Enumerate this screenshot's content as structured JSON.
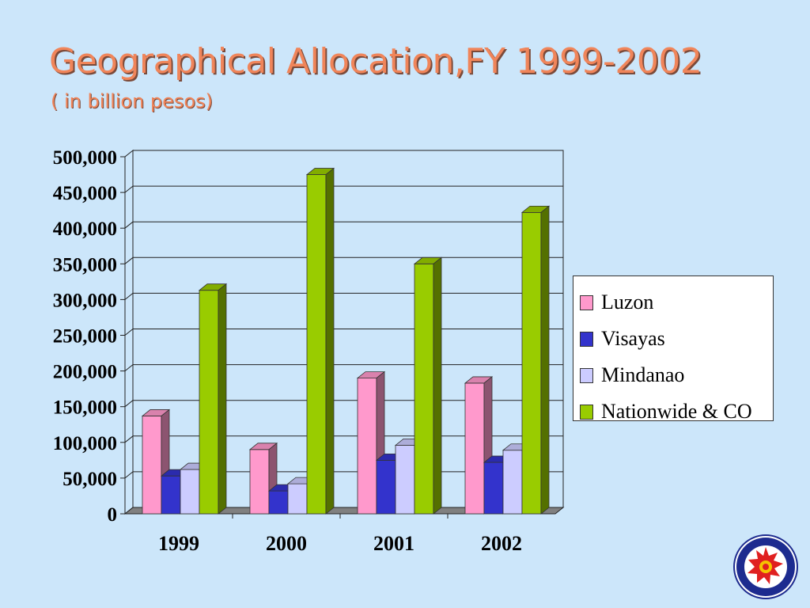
{
  "slide": {
    "title": "Geographical Allocation,FY 1999-2002",
    "subtitle": "( in billion pesos)"
  },
  "chart_data": {
    "type": "bar",
    "categories": [
      "1999",
      "2000",
      "2001",
      "2002"
    ],
    "series": [
      {
        "name": "Luzon",
        "color": "#ff99cc",
        "values": [
          137000,
          90000,
          190000,
          183000
        ]
      },
      {
        "name": "Visayas",
        "color": "#3333cc",
        "values": [
          53000,
          32000,
          75000,
          72000
        ]
      },
      {
        "name": "Mindanao",
        "color": "#ccccff",
        "values": [
          62000,
          42000,
          96000,
          89000
        ]
      },
      {
        "name": "Nationwide & CO",
        "color": "#99cc00",
        "values": [
          313000,
          475000,
          350000,
          422000
        ]
      }
    ],
    "ylim": [
      0,
      500000
    ],
    "yticks": [
      "500,000",
      "450,000",
      "400,000",
      "350,000",
      "300,000",
      "250,000",
      "200,000",
      "150,000",
      "100,000",
      "50,000",
      "0"
    ],
    "grid": true,
    "legend_position": "right",
    "style": "3d-clustered-column"
  },
  "logo": {
    "name": "dbm-seal-logo",
    "text": "THE DEPARTMENT OF BUDGET AND MANAGEMENT • 1936 •"
  }
}
